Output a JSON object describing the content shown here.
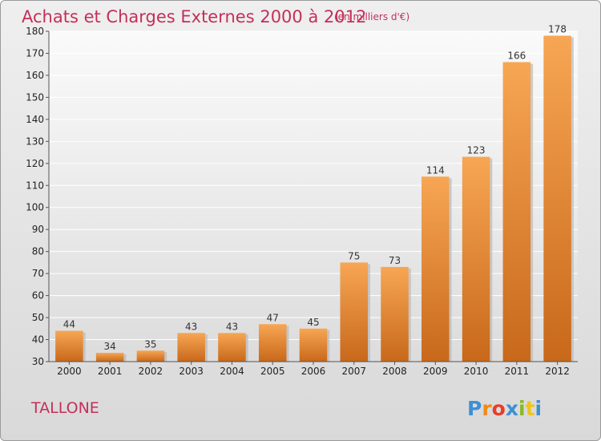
{
  "chart_data": {
    "type": "bar",
    "title": "Achats et Charges Externes 2000 à 2012",
    "subtitle": "(en milliers d'€)",
    "categories": [
      "2000",
      "2001",
      "2002",
      "2003",
      "2004",
      "2005",
      "2006",
      "2007",
      "2008",
      "2009",
      "2010",
      "2011",
      "2012"
    ],
    "values": [
      44,
      34,
      35,
      43,
      43,
      47,
      45,
      75,
      73,
      114,
      123,
      166,
      178
    ],
    "ylim": [
      30,
      180
    ],
    "yticks": [
      30,
      40,
      50,
      60,
      70,
      80,
      90,
      100,
      110,
      120,
      130,
      140,
      150,
      160,
      170,
      180
    ],
    "grid": true,
    "bar_color_top": "#f7a654",
    "bar_color_bottom": "#c8681a"
  },
  "commune": "TALLONE",
  "logo": {
    "letters": [
      "P",
      "r",
      "o",
      "x",
      "i",
      "t",
      "i"
    ],
    "colors": [
      "#3f8fd4",
      "#f08a18",
      "#e83c2a",
      "#3f8fd4",
      "#8ab82a",
      "#f0c419",
      "#3f8fd4"
    ]
  }
}
